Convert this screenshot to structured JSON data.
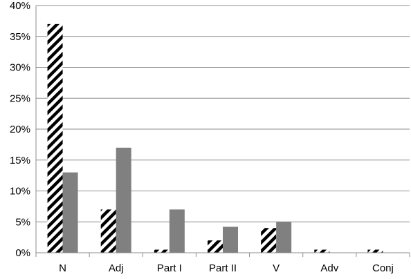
{
  "chart_data": {
    "type": "bar",
    "title": "",
    "xlabel": "",
    "ylabel": "",
    "categories": [
      "N",
      "Adj",
      "Part I",
      "Part II",
      "V",
      "Adv",
      "Conj"
    ],
    "series": [
      {
        "values": [
          37,
          7,
          0.5,
          2,
          4,
          0.5,
          0.5
        ],
        "pattern": "diagonal-hatch",
        "color": "#000000"
      },
      {
        "values": [
          13,
          17,
          7,
          4.2,
          5,
          0,
          0
        ],
        "pattern": "solid",
        "color": "#808080"
      }
    ],
    "ylim": [
      0,
      40
    ],
    "yticks": [
      0,
      5,
      10,
      15,
      20,
      25,
      30,
      35,
      40
    ],
    "ytick_labels": [
      "0%",
      "5%",
      "10%",
      "15%",
      "20%",
      "25%",
      "30%",
      "35%",
      "40%"
    ],
    "grid": true,
    "legend": "none"
  }
}
